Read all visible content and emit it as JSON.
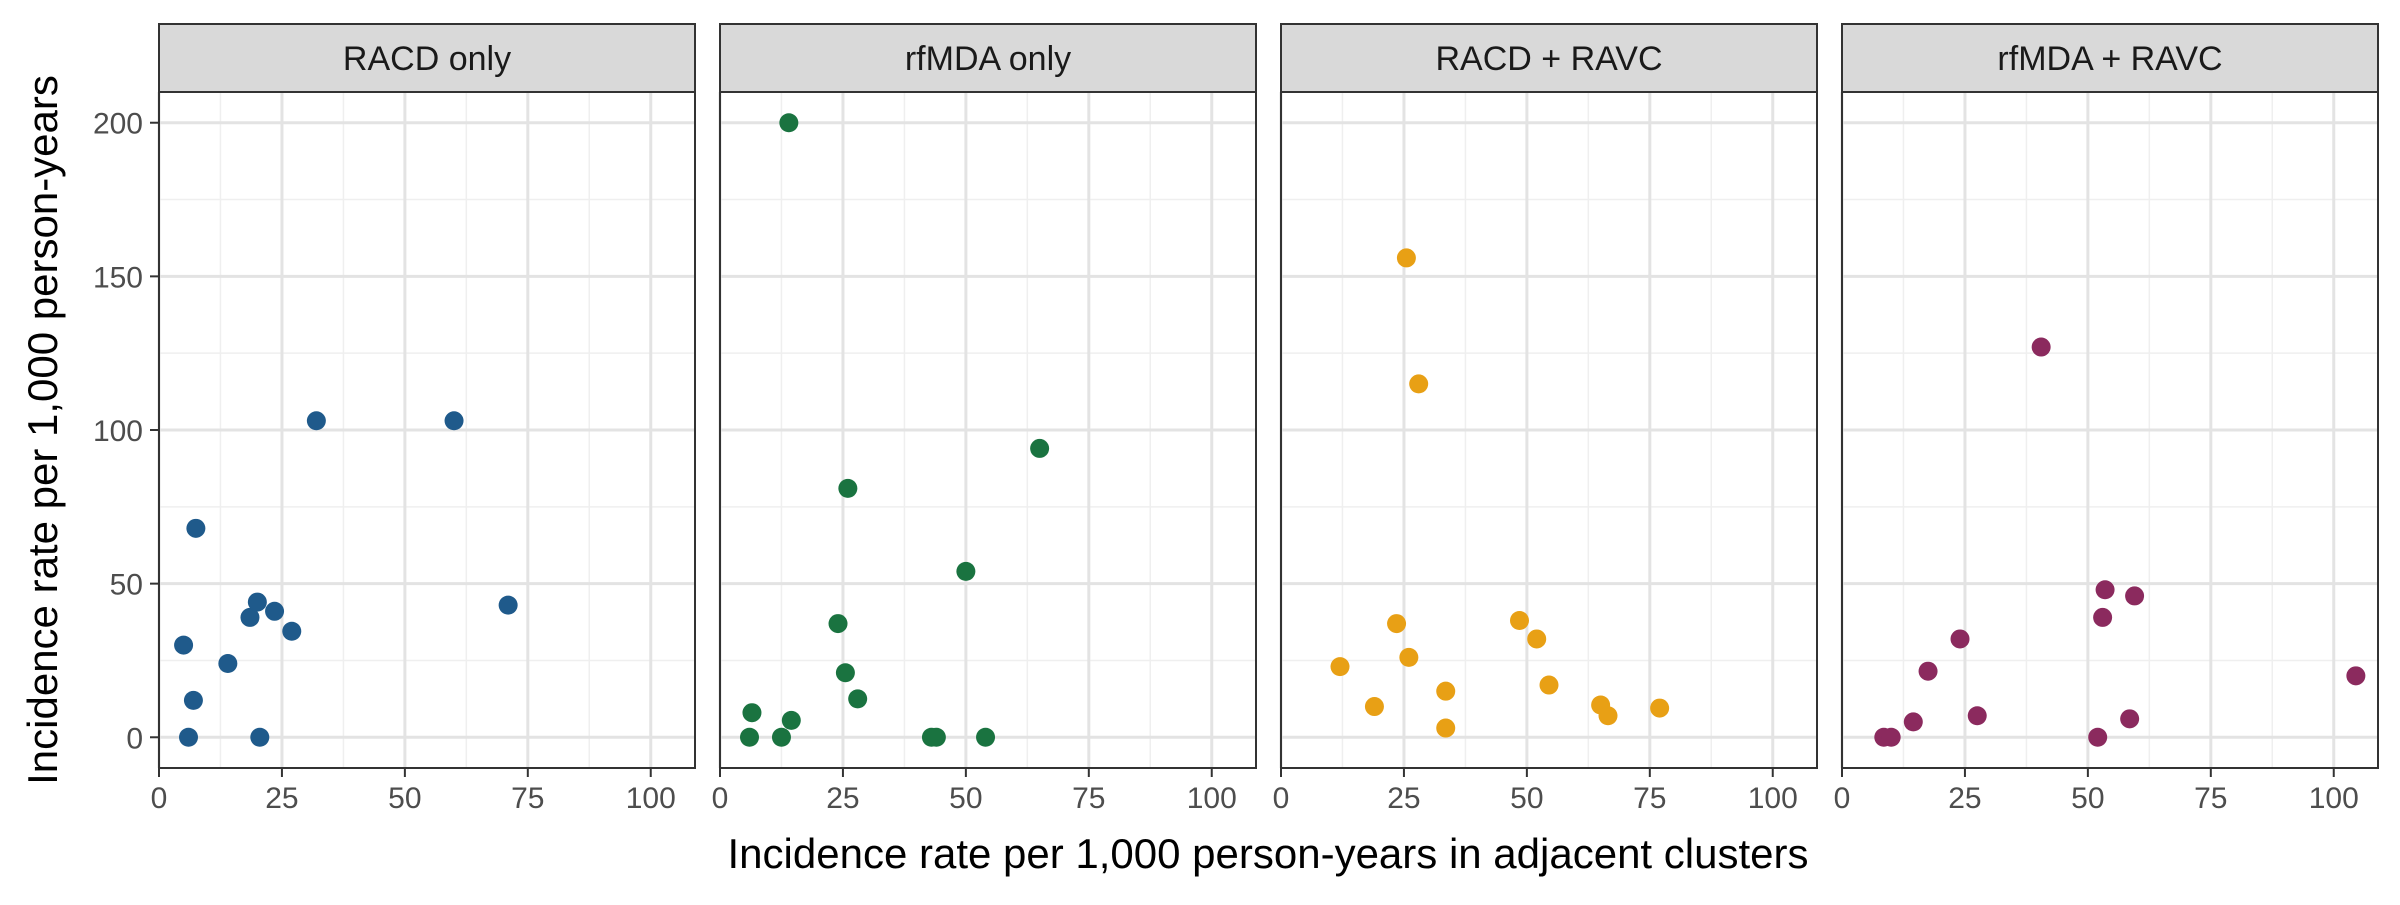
{
  "chart_data": {
    "type": "scatter",
    "xlabel": "Incidence rate per 1,000 person-years in adjacent clusters",
    "ylabel": "Incidence rate  per 1,000 person-years",
    "xlim": [
      0,
      109
    ],
    "ylim": [
      -10,
      210
    ],
    "x_ticks": [
      0,
      25,
      50,
      75,
      100
    ],
    "y_ticks": [
      0,
      50,
      100,
      150,
      200
    ],
    "x_tick_labels": [
      "0",
      "25",
      "50",
      "75",
      "100"
    ],
    "y_tick_labels": [
      "0",
      "50",
      "100",
      "150",
      "200"
    ],
    "grid": true,
    "legend": "none",
    "facets": [
      {
        "label": "RACD only",
        "color": "#1f5a8b",
        "points": [
          {
            "x": 5,
            "y": 30
          },
          {
            "x": 6,
            "y": 0
          },
          {
            "x": 7,
            "y": 12
          },
          {
            "x": 7.5,
            "y": 68
          },
          {
            "x": 14,
            "y": 24
          },
          {
            "x": 18.5,
            "y": 39
          },
          {
            "x": 20,
            "y": 44
          },
          {
            "x": 20.5,
            "y": 0
          },
          {
            "x": 23.5,
            "y": 41
          },
          {
            "x": 27,
            "y": 34.5
          },
          {
            "x": 32,
            "y": 103
          },
          {
            "x": 60,
            "y": 103
          },
          {
            "x": 71,
            "y": 43
          }
        ]
      },
      {
        "label": "rfMDA only",
        "color": "#1a7340",
        "points": [
          {
            "x": 6,
            "y": 0
          },
          {
            "x": 6.5,
            "y": 8
          },
          {
            "x": 12.5,
            "y": 0
          },
          {
            "x": 14,
            "y": 200
          },
          {
            "x": 14.5,
            "y": 5.5
          },
          {
            "x": 24,
            "y": 37
          },
          {
            "x": 25.5,
            "y": 21
          },
          {
            "x": 26,
            "y": 81
          },
          {
            "x": 28,
            "y": 12.5
          },
          {
            "x": 43,
            "y": 0
          },
          {
            "x": 44,
            "y": 0
          },
          {
            "x": 50,
            "y": 54
          },
          {
            "x": 54,
            "y": 0
          },
          {
            "x": 65,
            "y": 94
          }
        ]
      },
      {
        "label": "RACD + RAVC",
        "color": "#e8a015",
        "points": [
          {
            "x": 12,
            "y": 23
          },
          {
            "x": 19,
            "y": 10
          },
          {
            "x": 23.5,
            "y": 37
          },
          {
            "x": 25.5,
            "y": 156
          },
          {
            "x": 26,
            "y": 26
          },
          {
            "x": 28,
            "y": 115
          },
          {
            "x": 33.5,
            "y": 15
          },
          {
            "x": 33.5,
            "y": 3
          },
          {
            "x": 48.5,
            "y": 38
          },
          {
            "x": 52,
            "y": 32
          },
          {
            "x": 54.5,
            "y": 17
          },
          {
            "x": 65,
            "y": 10.5
          },
          {
            "x": 66.5,
            "y": 7
          },
          {
            "x": 77,
            "y": 9.5
          }
        ]
      },
      {
        "label": "rfMDA + RAVC",
        "color": "#8b2a5e",
        "points": [
          {
            "x": 8.5,
            "y": 0
          },
          {
            "x": 10,
            "y": 0
          },
          {
            "x": 14.5,
            "y": 5
          },
          {
            "x": 17.5,
            "y": 21.5
          },
          {
            "x": 24,
            "y": 32
          },
          {
            "x": 27.5,
            "y": 7
          },
          {
            "x": 40.5,
            "y": 127
          },
          {
            "x": 52,
            "y": 0
          },
          {
            "x": 53,
            "y": 39
          },
          {
            "x": 53.5,
            "y": 48
          },
          {
            "x": 58.5,
            "y": 6
          },
          {
            "x": 59.5,
            "y": 46
          },
          {
            "x": 104.5,
            "y": 20
          }
        ]
      }
    ]
  }
}
